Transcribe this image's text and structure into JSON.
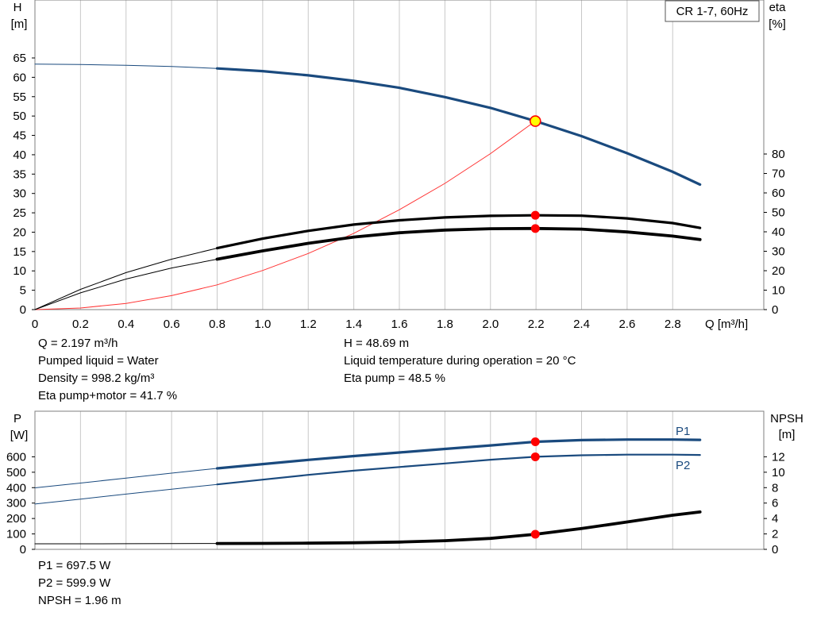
{
  "top_chart": {
    "label": "CR 1-7, 60Hz",
    "left_axis": {
      "title": "H",
      "unit": "[m]"
    },
    "right_axis": {
      "title": "eta",
      "unit": "[%]"
    },
    "x_axis": {
      "unit": "Q [m³/h]"
    }
  },
  "bottom_chart": {
    "left_axis": {
      "title": "P",
      "unit": "[W]"
    },
    "right_axis": {
      "title": "NPSH",
      "unit": "[m]"
    },
    "p1_label": "P1",
    "p2_label": "P2"
  },
  "info_top_left": [
    "Q = 2.197 m³/h",
    "Pumped liquid = Water",
    "Density = 998.2 kg/m³",
    "Eta pump+motor = 41.7 %"
  ],
  "info_top_right": [
    "H = 48.69 m",
    "Liquid temperature during operation = 20 °C",
    "Eta pump = 48.5 %"
  ],
  "info_bottom": [
    "P1 = 697.5 W",
    "P2 = 599.9 W",
    "NPSH = 1.96 m"
  ],
  "colors": {
    "head": "#1a4a7e",
    "power": "#1a4a7e",
    "efficiency": "#000000",
    "system_curve": "#ff3333",
    "duty_marker": "#ff0000",
    "duty_head_marker": "#ffff00",
    "grid": "#c8c8c8"
  },
  "chart_data": [
    {
      "type": "line",
      "title": "",
      "label": "CR 1-7, 60Hz",
      "xlabel": "Q [m³/h]",
      "ylabel": "H [m]",
      "y2label": "eta [%]",
      "xlim": [
        0,
        3.2
      ],
      "ylim": [
        0,
        65
      ],
      "y2lim": [
        0,
        80
      ],
      "x_ticks": [
        0,
        0.2,
        0.4,
        0.6,
        0.8,
        1.0,
        1.2,
        1.4,
        1.6,
        1.8,
        2.0,
        2.2,
        2.4,
        2.6,
        2.8
      ],
      "x_tick_labels": [
        "0",
        "0.2",
        "0.4",
        "0.6",
        "0.8",
        "1.0",
        "1.2",
        "1.4",
        "1.6",
        "1.8",
        "2.0",
        "2.2",
        "2.4",
        "2.6",
        "2.8"
      ],
      "y_ticks": [
        0,
        5,
        10,
        15,
        20,
        25,
        30,
        35,
        40,
        45,
        50,
        55,
        60,
        65
      ],
      "y2_ticks": [
        0,
        10,
        20,
        30,
        40,
        50,
        60,
        70,
        80
      ],
      "grid": true,
      "duty_point": {
        "x": 2.197,
        "y": 48.69
      },
      "series": [
        {
          "axis": "left",
          "style": "thin",
          "x": [
            0,
            0.2,
            0.4,
            0.6,
            0.8
          ],
          "y": [
            63.4,
            63.3,
            63.1,
            62.8,
            62.3
          ]
        },
        {
          "axis": "left",
          "style": "thick",
          "x": [
            0.8,
            1.0,
            1.2,
            1.4,
            1.6,
            1.8,
            2.0,
            2.197,
            2.4,
            2.6,
            2.8,
            2.92
          ],
          "y": [
            62.3,
            61.6,
            60.5,
            59.1,
            57.3,
            54.9,
            52.1,
            48.69,
            44.8,
            40.4,
            35.6,
            32.3
          ]
        },
        {
          "axis": "left",
          "style": "system",
          "x": [
            0,
            0.2,
            0.4,
            0.6,
            0.8,
            1.0,
            1.2,
            1.4,
            1.6,
            1.8,
            2.0,
            2.197
          ],
          "y": [
            0,
            0.4,
            1.6,
            3.6,
            6.4,
            10.1,
            14.5,
            19.7,
            25.8,
            32.6,
            40.3,
            48.69
          ]
        },
        {
          "axis": "right",
          "style": "thin",
          "x": [
            0,
            0.2,
            0.4,
            0.6,
            0.8
          ],
          "y": [
            0,
            10.4,
            19.0,
            25.9,
            31.6
          ]
        },
        {
          "axis": "right",
          "style": "thick",
          "x": [
            0.8,
            1.0,
            1.2,
            1.4,
            1.6,
            1.8,
            2.0,
            2.197,
            2.4,
            2.6,
            2.8,
            2.92
          ],
          "y": [
            31.6,
            36.5,
            40.5,
            43.7,
            45.9,
            47.4,
            48.2,
            48.5,
            48.3,
            46.9,
            44.5,
            42.0
          ]
        },
        {
          "axis": "right",
          "style": "thin",
          "x": [
            0,
            0.2,
            0.4,
            0.6,
            0.8
          ],
          "y": [
            0,
            8.6,
            15.7,
            21.4,
            25.9
          ]
        },
        {
          "axis": "right",
          "style": "heavy",
          "x": [
            0.8,
            1.0,
            1.2,
            1.4,
            1.6,
            1.8,
            2.0,
            2.197,
            2.4,
            2.6,
            2.8,
            2.92
          ],
          "y": [
            25.9,
            30.2,
            34.1,
            37.3,
            39.5,
            40.9,
            41.6,
            41.7,
            41.4,
            39.9,
            37.8,
            36.0
          ]
        }
      ],
      "markers": [
        {
          "axis": "left",
          "x": 2.197,
          "y": 48.69,
          "kind": "duty-head"
        },
        {
          "axis": "right",
          "x": 2.197,
          "y": 48.5,
          "kind": "duty"
        },
        {
          "axis": "right",
          "x": 2.197,
          "y": 41.7,
          "kind": "duty"
        }
      ]
    },
    {
      "type": "line",
      "title": "",
      "xlabel": "",
      "ylabel": "P [W]",
      "y2label": "NPSH [m]",
      "xlim": [
        0,
        3.2
      ],
      "ylim": [
        0,
        700
      ],
      "y2lim": [
        0,
        14
      ],
      "y_ticks": [
        0,
        100,
        200,
        300,
        400,
        500,
        600
      ],
      "y2_ticks": [
        0,
        2,
        4,
        6,
        8,
        10,
        12
      ],
      "grid": true,
      "series": [
        {
          "name": "P1",
          "axis": "left",
          "style": "thin",
          "x": [
            0,
            0.2,
            0.4,
            0.6,
            0.8
          ],
          "y": [
            399,
            430,
            462,
            494,
            525
          ]
        },
        {
          "name": "P1",
          "axis": "left",
          "style": "thick",
          "x": [
            0.8,
            1.0,
            1.2,
            1.4,
            1.6,
            1.8,
            2.0,
            2.197,
            2.4,
            2.6,
            2.8,
            2.92
          ],
          "y": [
            525,
            553,
            580,
            605,
            628,
            651,
            674,
            697.5,
            708,
            712,
            712,
            710
          ]
        },
        {
          "axis": "left",
          "style": "thin",
          "x": [
            0,
            0.2,
            0.4,
            0.6,
            0.8
          ],
          "y": [
            294,
            326,
            358,
            390,
            421
          ]
        },
        {
          "name": "P2",
          "axis": "left",
          "style": "medium",
          "x": [
            0.8,
            1.0,
            1.2,
            1.4,
            1.6,
            1.8,
            2.0,
            2.197,
            2.4,
            2.6,
            2.8,
            2.92
          ],
          "y": [
            421,
            452,
            483,
            510,
            534,
            557,
            581,
            599.9,
            610,
            614,
            614,
            612
          ]
        },
        {
          "axis": "right",
          "style": "thin",
          "x": [
            0,
            0.2,
            0.4,
            0.6,
            0.8
          ],
          "y": [
            0.72,
            0.72,
            0.73,
            0.74,
            0.76
          ]
        },
        {
          "axis": "right",
          "style": "heavy",
          "x": [
            0.8,
            1.0,
            1.2,
            1.4,
            1.6,
            1.8,
            2.0,
            2.197,
            2.4,
            2.6,
            2.8,
            2.92
          ],
          "y": [
            0.76,
            0.77,
            0.8,
            0.85,
            0.95,
            1.12,
            1.42,
            1.96,
            2.7,
            3.55,
            4.43,
            4.85
          ]
        }
      ],
      "markers": [
        {
          "axis": "left",
          "x": 2.197,
          "y": 697.5,
          "kind": "duty"
        },
        {
          "axis": "left",
          "x": 2.197,
          "y": 599.9,
          "kind": "duty"
        },
        {
          "axis": "right",
          "x": 2.197,
          "y": 1.96,
          "kind": "duty"
        }
      ]
    }
  ]
}
